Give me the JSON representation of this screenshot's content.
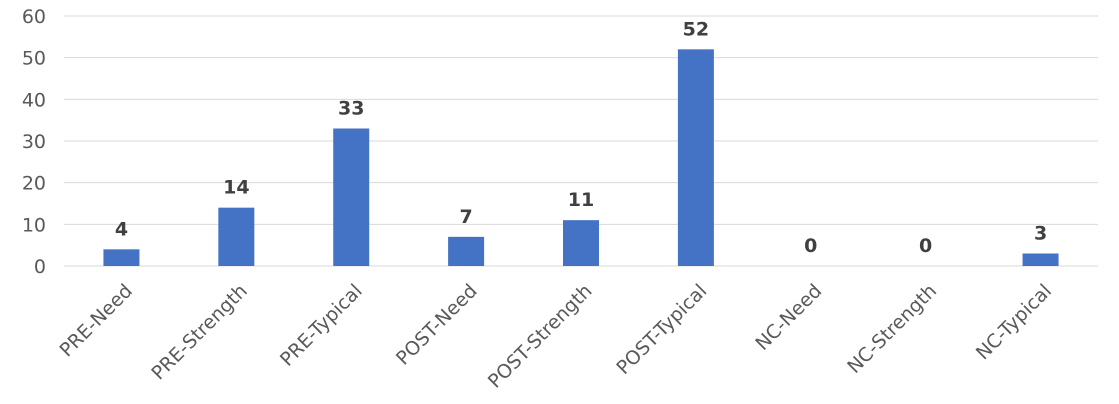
{
  "chart_data": {
    "type": "bar",
    "categories": [
      "PRE-Need",
      "PRE-Strength",
      "PRE-Typical",
      "POST-Need",
      "POST-Strength",
      "POST-Typical",
      "NC-Need",
      "NC-Strength",
      "NC-Typical"
    ],
    "values": [
      4,
      14,
      33,
      7,
      11,
      52,
      0,
      0,
      3
    ],
    "ylim": [
      0,
      60
    ],
    "yticks": [
      0,
      10,
      20,
      30,
      40,
      50,
      60
    ],
    "grid": true,
    "legend": "none",
    "colors": {
      "bar": "#4472c4",
      "grid": "#d9d9d9",
      "tick_text": "#595959",
      "data_label": "#404040"
    }
  }
}
